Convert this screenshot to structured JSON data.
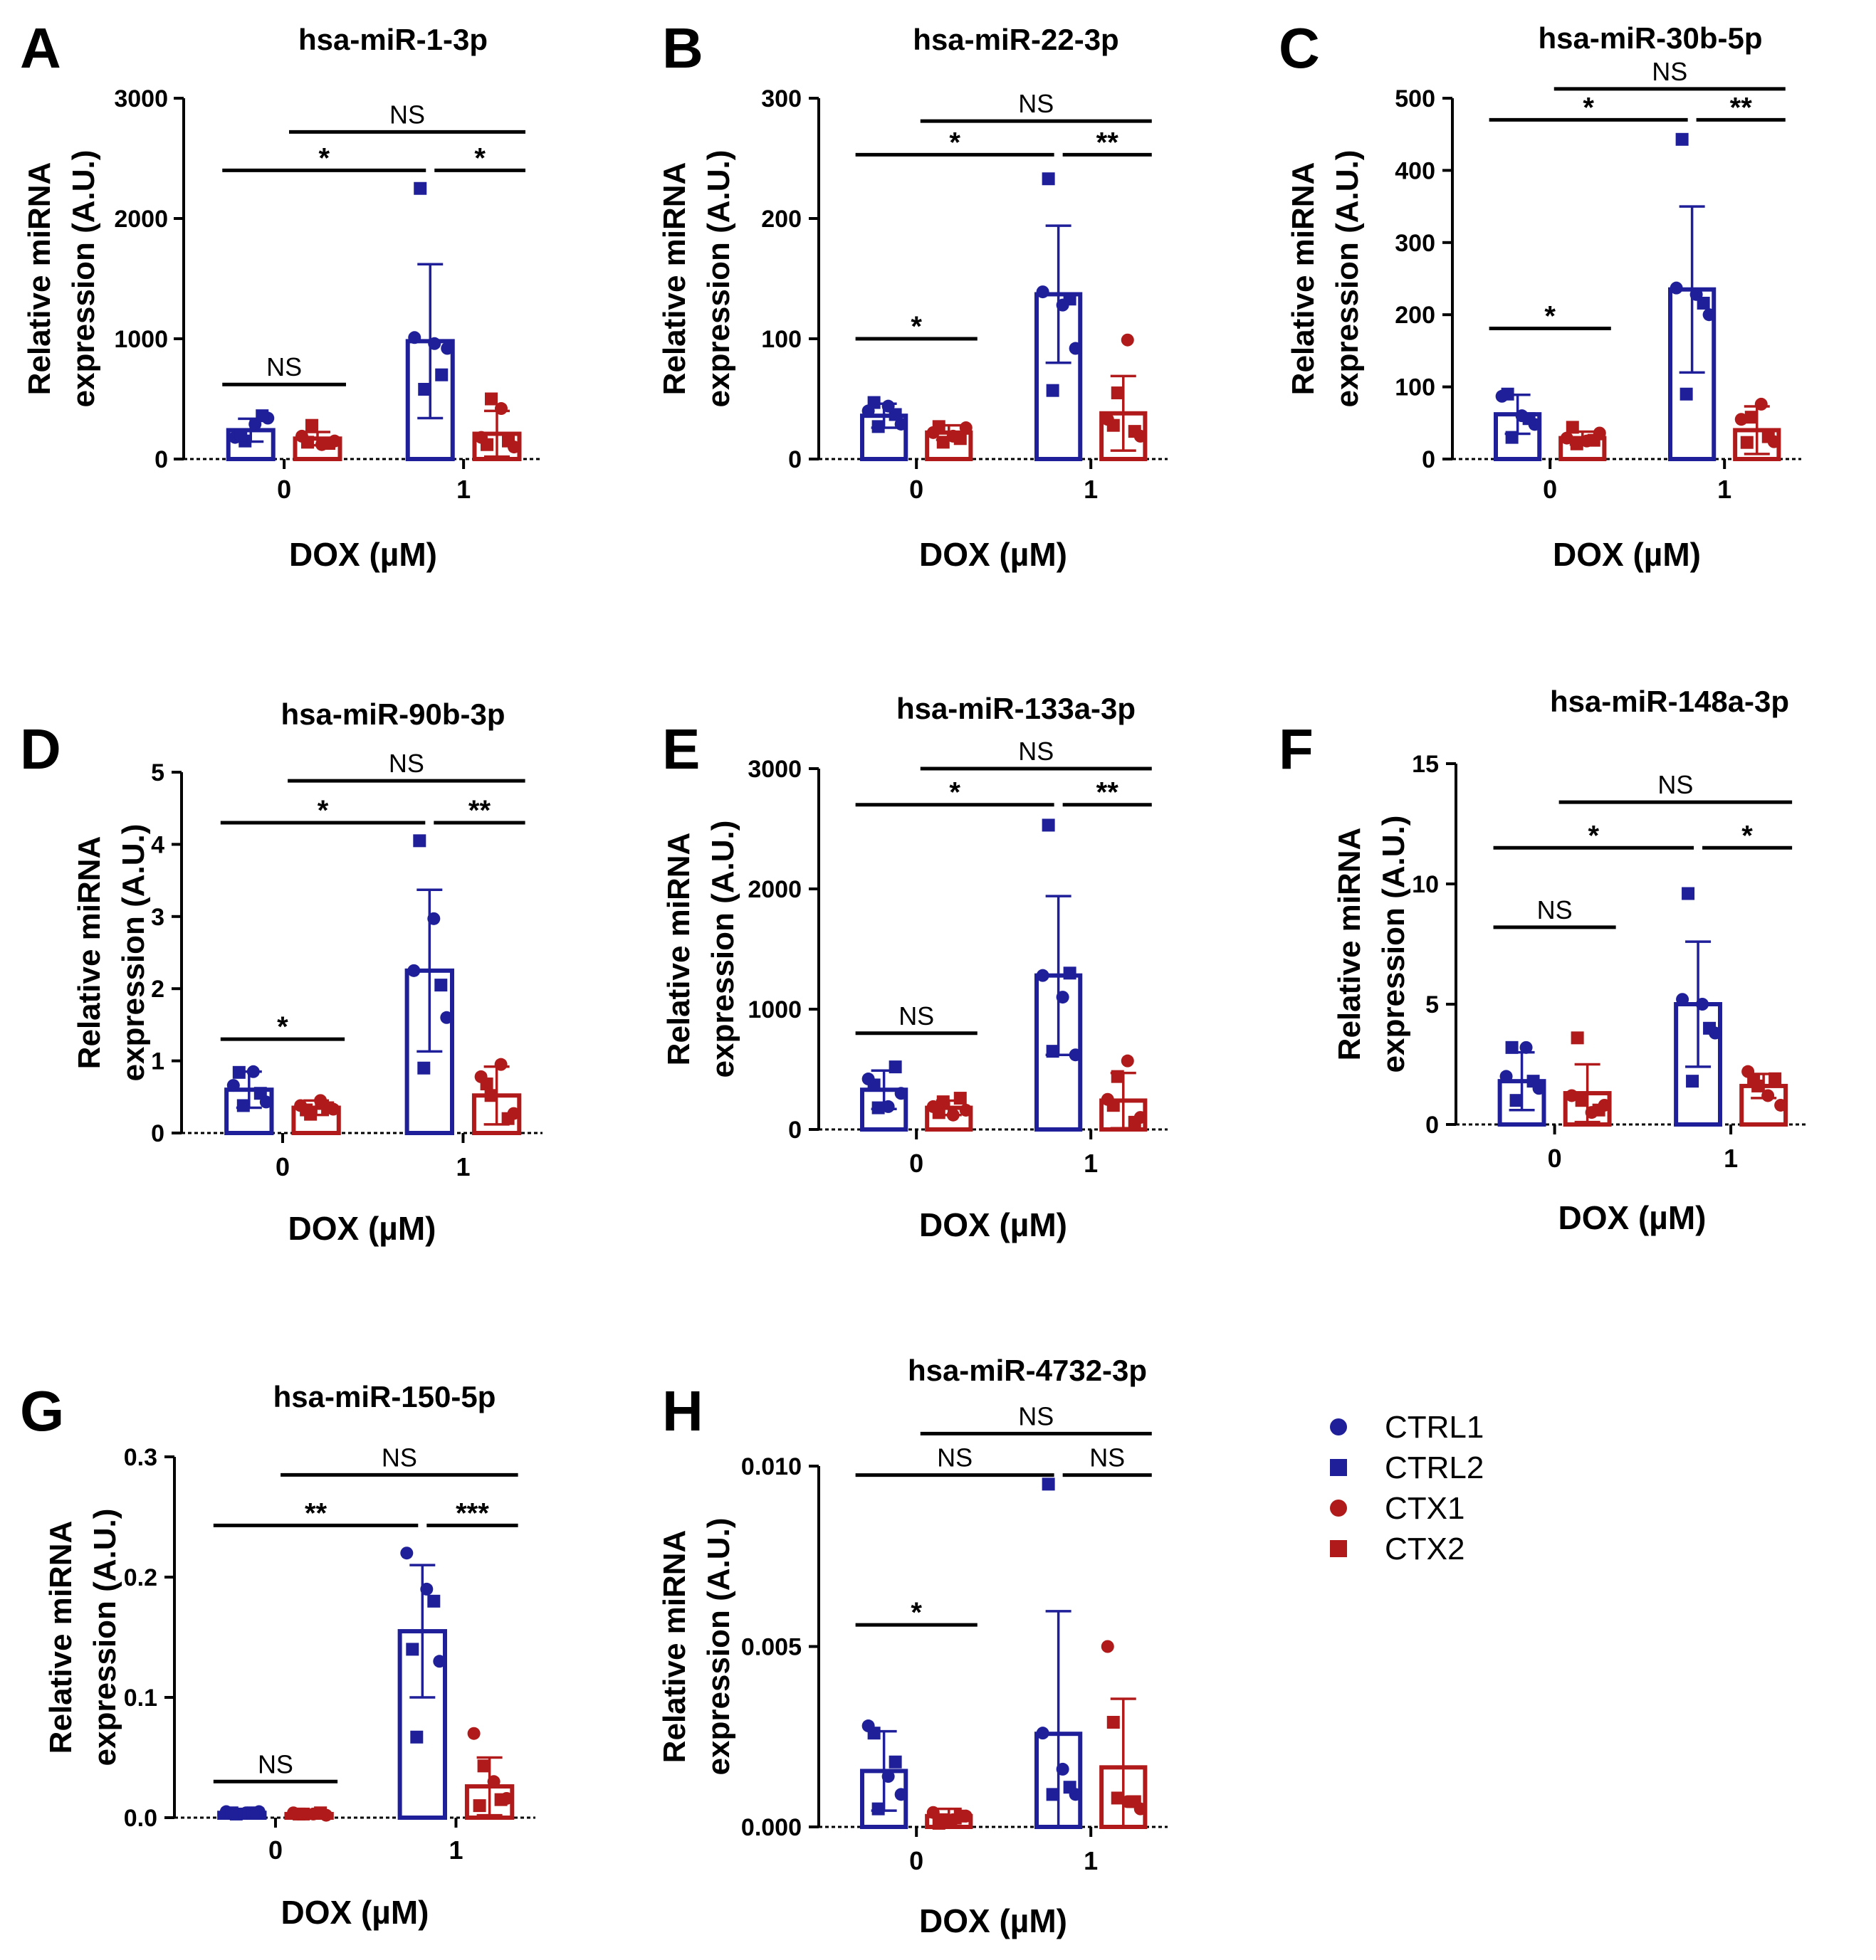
{
  "chart_data": [
    {
      "letter": "A",
      "title": "hsa-miR-1-3p",
      "type": "bar",
      "xlabel": "DOX (µM)",
      "ylabel": [
        "Relative miRNA",
        "expression (A.U.)"
      ],
      "ylim": [
        0,
        3000
      ],
      "yticks": [
        "0",
        "1000",
        "2000",
        "3000"
      ],
      "categories": [
        "0",
        "1"
      ],
      "series": [
        {
          "name": "CTRL",
          "values": [
            240,
            980
          ],
          "sd": [
            95,
            640
          ],
          "points": [
            [
              180,
              290,
              340,
              150,
              360,
              200
            ],
            [
              1010,
              960,
              920,
              580,
              700,
              2250
            ]
          ]
        },
        {
          "name": "CTX",
          "values": [
            170,
            210
          ],
          "sd": [
            55,
            190
          ],
          "points": [
            [
              190,
              120,
              150,
              280,
              130,
              140
            ],
            [
              180,
              420,
              100,
              500,
              150,
              120
            ]
          ]
        }
      ],
      "significance": [
        {
          "from": "CTRL@0",
          "to": "CTX@0",
          "label": "NS",
          "y": 620
        },
        {
          "from": "CTRL@0",
          "to": "CTRL@1",
          "label": "*",
          "y": 2400
        },
        {
          "from": "CTRL@1",
          "to": "CTX@1",
          "label": "*",
          "y": 2400
        },
        {
          "from": "CTX@0",
          "to": "CTX@1",
          "label": "NS",
          "y": 2720
        }
      ]
    },
    {
      "letter": "B",
      "title": "hsa-miR-22-3p",
      "type": "bar",
      "xlabel": "DOX (µM)",
      "ylabel": [
        "Relative miRNA",
        "expression (A.U.)"
      ],
      "ylim": [
        0,
        300
      ],
      "yticks": [
        "0",
        "100",
        "200",
        "300"
      ],
      "categories": [
        "0",
        "1"
      ],
      "series": [
        {
          "name": "CTRL",
          "values": [
            36,
            137
          ],
          "sd": [
            10,
            57
          ],
          "points": [
            [
              40,
              44,
              29,
              27,
              37,
              47
            ],
            [
              139,
              128,
              92,
              57,
              133,
              233
            ]
          ]
        },
        {
          "name": "CTX",
          "values": [
            22,
            38
          ],
          "sd": [
            6,
            31
          ],
          "points": [
            [
              22,
              19,
              26,
              14,
              17,
              27
            ],
            [
              33,
              99,
              19,
              55,
              23,
              28
            ]
          ]
        }
      ],
      "significance": [
        {
          "from": "CTRL@0",
          "to": "CTX@0",
          "label": "*",
          "y": 100
        },
        {
          "from": "CTRL@0",
          "to": "CTRL@1",
          "label": "*",
          "y": 253
        },
        {
          "from": "CTRL@1",
          "to": "CTX@1",
          "label": "**",
          "y": 253
        },
        {
          "from": "CTX@0",
          "to": "CTX@1",
          "label": "NS",
          "y": 281
        }
      ]
    },
    {
      "letter": "C",
      "title": "hsa-miR-30b-5p",
      "type": "bar",
      "xlabel": "DOX (µM)",
      "ylabel": [
        "Relative miRNA",
        "expression (A.U.)"
      ],
      "ylim": [
        0,
        500
      ],
      "yticks": [
        "0",
        "100",
        "200",
        "300",
        "400",
        "500"
      ],
      "categories": [
        "0",
        "1"
      ],
      "series": [
        {
          "name": "CTRL",
          "values": [
            62,
            235
          ],
          "sd": [
            27,
            115
          ],
          "points": [
            [
              87,
              60,
              48,
              30,
              56,
              90
            ],
            [
              237,
              228,
              200,
              90,
              216,
              443
            ]
          ]
        },
        {
          "name": "CTX",
          "values": [
            29,
            40
          ],
          "sd": [
            9,
            33
          ],
          "points": [
            [
              29,
              25,
              36,
              21,
              26,
              44
            ],
            [
              55,
              76,
              24,
              58,
              31,
              23
            ]
          ]
        }
      ],
      "significance": [
        {
          "from": "CTRL@0",
          "to": "CTX@0",
          "label": "*",
          "y": 181
        },
        {
          "from": "CTRL@0",
          "to": "CTRL@1",
          "label": "*",
          "y": 470
        },
        {
          "from": "CTRL@1",
          "to": "CTX@1",
          "label": "**",
          "y": 470
        },
        {
          "from": "CTX@0",
          "to": "CTX@1",
          "label": "NS",
          "y": 513
        }
      ]
    },
    {
      "letter": "D",
      "title": "hsa-miR-90b-3p",
      "type": "bar",
      "xlabel": "DOX (µM)",
      "ylabel": [
        "Relative miRNA",
        "expression (A.U.)"
      ],
      "ylim": [
        0,
        5
      ],
      "yticks": [
        "0",
        "1",
        "2",
        "3",
        "4",
        "5"
      ],
      "categories": [
        "0",
        "1"
      ],
      "series": [
        {
          "name": "CTRL",
          "values": [
            0.6,
            2.25
          ],
          "sd": [
            0.25,
            1.12
          ],
          "points": [
            [
              0.66,
              0.85,
              0.43,
              0.38,
              0.55,
              0.84
            ],
            [
              2.25,
              2.97,
              1.6,
              0.9,
              2.05,
              4.05
            ]
          ]
        },
        {
          "name": "CTX",
          "values": [
            0.35,
            0.52
          ],
          "sd": [
            0.1,
            0.4
          ],
          "points": [
            [
              0.38,
              0.45,
              0.33,
              0.26,
              0.35,
              0.32
            ],
            [
              0.78,
              0.95,
              0.27,
              0.52,
              0.2,
              0.68
            ]
          ]
        }
      ],
      "significance": [
        {
          "from": "CTRL@0",
          "to": "CTX@0",
          "label": "*",
          "y": 1.3
        },
        {
          "from": "CTRL@0",
          "to": "CTRL@1",
          "label": "*",
          "y": 4.3
        },
        {
          "from": "CTRL@1",
          "to": "CTX@1",
          "label": "**",
          "y": 4.3
        },
        {
          "from": "CTX@0",
          "to": "CTX@1",
          "label": "NS",
          "y": 4.88
        }
      ]
    },
    {
      "letter": "E",
      "title": "hsa-miR-133a-3p",
      "type": "bar",
      "xlabel": "DOX (µM)",
      "ylabel": [
        "Relative miRNA",
        "expression (A.U.)"
      ],
      "ylim": [
        0,
        3000
      ],
      "yticks": [
        "0",
        "1000",
        "2000",
        "3000"
      ],
      "categories": [
        "0",
        "1"
      ],
      "series": [
        {
          "name": "CTRL",
          "values": [
            330,
            1280
          ],
          "sd": [
            160,
            660
          ],
          "points": [
            [
              420,
              190,
              300,
              180,
              520,
              370
            ],
            [
              1280,
              1100,
              620,
              650,
              1300,
              2530
            ]
          ]
        },
        {
          "name": "CTX",
          "values": [
            180,
            240
          ],
          "sd": [
            60,
            230
          ],
          "points": [
            [
              190,
              120,
              160,
              230,
              260,
              140
            ],
            [
              250,
              570,
              100,
              440,
              60,
              200
            ]
          ]
        }
      ],
      "significance": [
        {
          "from": "CTRL@0",
          "to": "CTX@0",
          "label": "NS",
          "y": 800
        },
        {
          "from": "CTRL@0",
          "to": "CTRL@1",
          "label": "*",
          "y": 2700
        },
        {
          "from": "CTRL@1",
          "to": "CTX@1",
          "label": "**",
          "y": 2700
        },
        {
          "from": "CTX@0",
          "to": "CTX@1",
          "label": "NS",
          "y": 3000
        }
      ]
    },
    {
      "letter": "F",
      "title": "hsa-miR-148a-3p",
      "type": "bar",
      "xlabel": "DOX (µM)",
      "ylabel": [
        "Relative miRNA",
        "expression (A.U.)"
      ],
      "ylim": [
        0,
        15
      ],
      "yticks": [
        "0",
        "5",
        "10",
        "15"
      ],
      "categories": [
        "0",
        "1"
      ],
      "series": [
        {
          "name": "CTRL",
          "values": [
            1.8,
            5.0
          ],
          "sd": [
            1.2,
            2.6
          ],
          "points": [
            [
              2.0,
              3.2,
              1.5,
              1.0,
              1.8,
              3.2
            ],
            [
              5.2,
              5.0,
              3.8,
              1.8,
              4.0,
              9.6
            ]
          ]
        },
        {
          "name": "CTX",
          "values": [
            1.3,
            1.6
          ],
          "sd": [
            1.2,
            0.5
          ],
          "points": [
            [
              1.2,
              0.5,
              0.8,
              1.0,
              0.6,
              3.6
            ],
            [
              2.2,
              1.2,
              0.8,
              1.6,
              1.9,
              1.8
            ]
          ]
        }
      ],
      "significance": [
        {
          "from": "CTRL@0",
          "to": "CTX@0",
          "label": "NS",
          "y": 8.2
        },
        {
          "from": "CTRL@0",
          "to": "CTRL@1",
          "label": "*",
          "y": 11.5
        },
        {
          "from": "CTRL@1",
          "to": "CTX@1",
          "label": "*",
          "y": 11.5
        },
        {
          "from": "CTX@0",
          "to": "CTX@1",
          "label": "NS",
          "y": 13.4
        }
      ]
    },
    {
      "letter": "G",
      "title": "hsa-miR-150-5p",
      "type": "bar",
      "xlabel": "DOX (µM)",
      "ylabel": [
        "Relative miRNA",
        "expression (A.U.)"
      ],
      "ylim": [
        0,
        0.3
      ],
      "yticks": [
        "0.0",
        "0.1",
        "0.2",
        "0.3"
      ],
      "categories": [
        "0",
        "1"
      ],
      "series": [
        {
          "name": "CTRL",
          "values": [
            0.004,
            0.155
          ],
          "sd": [
            0.002,
            0.055
          ],
          "points": [
            [
              0.005,
              0.004,
              0.005,
              0.003,
              0.004,
              0.004
            ],
            [
              0.22,
              0.19,
              0.13,
              0.067,
              0.18,
              0.14
            ]
          ]
        },
        {
          "name": "CTX",
          "values": [
            0.003,
            0.026
          ],
          "sd": [
            0.002,
            0.024
          ],
          "points": [
            [
              0.004,
              0.003,
              0.002,
              0.003,
              0.004,
              0.003
            ],
            [
              0.07,
              0.03,
              0.016,
              0.043,
              0.015,
              0.01
            ]
          ]
        }
      ],
      "significance": [
        {
          "from": "CTRL@0",
          "to": "CTX@0",
          "label": "NS",
          "y": 0.03
        },
        {
          "from": "CTRL@0",
          "to": "CTRL@1",
          "label": "**",
          "y": 0.243
        },
        {
          "from": "CTRL@1",
          "to": "CTX@1",
          "label": "***",
          "y": 0.243
        },
        {
          "from": "CTX@0",
          "to": "CTX@1",
          "label": "NS",
          "y": 0.285
        }
      ]
    },
    {
      "letter": "H",
      "title": "hsa-miR-4732-3p",
      "type": "bar",
      "xlabel": "DOX (µM)",
      "ylabel": [
        "Relative miRNA",
        "expression (A.U.)"
      ],
      "ylim": [
        0,
        0.01
      ],
      "yticks": [
        "0.000",
        "0.005",
        "0.010"
      ],
      "categories": [
        "0",
        "1"
      ],
      "series": [
        {
          "name": "CTRL",
          "values": [
            0.00155,
            0.00258
          ],
          "sd": [
            0.0011,
            0.0034
          ],
          "points": [
            [
              0.0028,
              0.0014,
              0.0009,
              0.0005,
              0.0018,
              0.0026
            ],
            [
              0.0026,
              0.0016,
              0.0009,
              0.0009,
              0.0011,
              0.0095
            ]
          ]
        },
        {
          "name": "CTX",
          "values": [
            0.0003,
            0.00165
          ],
          "sd": [
            0.0002,
            0.0019
          ],
          "points": [
            [
              0.0004,
              0.0002,
              0.0003,
              0.0002,
              0.0003,
              0.0001
            ],
            [
              0.005,
              0.0007,
              0.0005,
              0.0008,
              0.0007,
              0.0029
            ]
          ]
        }
      ],
      "significance": [
        {
          "from": "CTRL@0",
          "to": "CTX@0",
          "label": "*",
          "y": 0.0056
        },
        {
          "from": "CTRL@0",
          "to": "CTRL@1",
          "label": "NS",
          "y": 0.00975
        },
        {
          "from": "CTRL@1",
          "to": "CTX@1",
          "label": "NS",
          "y": 0.00975
        },
        {
          "from": "CTX@0",
          "to": "CTX@1",
          "label": "NS",
          "y": 0.0109
        }
      ]
    }
  ],
  "legend": {
    "items": [
      {
        "label": "CTRL1",
        "marker": "circle",
        "color": "#1F1F9A"
      },
      {
        "label": "CTRL2",
        "marker": "square",
        "color": "#1F1F9A"
      },
      {
        "label": "CTX1",
        "marker": "circle",
        "color": "#B01A1A"
      },
      {
        "label": "CTX2",
        "marker": "square",
        "color": "#B01A1A"
      }
    ]
  },
  "colors": {
    "ctrl": "#1F1F9A",
    "ctx": "#B01A1A",
    "axis": "#000000"
  }
}
